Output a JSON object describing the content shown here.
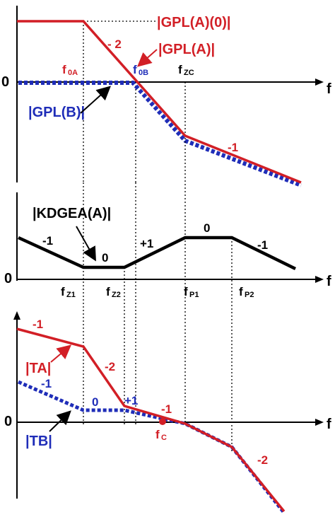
{
  "colors": {
    "red": "#d21f26",
    "blue": "#1f2db8",
    "black": "#000000",
    "white": "#ffffff"
  },
  "top_panel": {
    "zero_label": "0",
    "f_axis_label": "f",
    "gpl_a0_label": "|GPL(A)(0)|",
    "gpl_a_label": "|GPL(A)|",
    "gpl_b_label": "|GPL(B)|",
    "slope_m2": "- 2",
    "slope_m1": "-1",
    "f0a_main": "f",
    "f0a_sub": "0A",
    "f0b_main": "f",
    "f0b_sub": "0B",
    "fzc_main": "f",
    "fzc_sub": "ZC"
  },
  "middle_panel": {
    "zero_label": "0",
    "f_axis_label": "f",
    "kd_label": "|KDGEA(A)|",
    "slope_m1_left": "-1",
    "slope_0_left": "0",
    "slope_p1": "+1",
    "slope_0_right": "0",
    "slope_m1_right": "-1",
    "fz1_main": "f",
    "fz1_sub": "Z1",
    "fz2_main": "f",
    "fz2_sub": "Z2",
    "fp1_main": "f",
    "fp1_sub": "P1",
    "fp2_main": "f",
    "fp2_sub": "P2"
  },
  "bottom_panel": {
    "zero_label": "0",
    "f_axis_label": "f",
    "ta_label": "|TA|",
    "tb_label": "|TB|",
    "ta_slope_m1": "-1",
    "ta_slope_m2": "-2",
    "tb_slope_m1": "-1",
    "tb_slope_0": "0",
    "slope_p1": "+1",
    "slope_m1_mid": "-1",
    "slope_m2_end": "-2",
    "fc_main": "f",
    "fc_sub": "C"
  }
}
